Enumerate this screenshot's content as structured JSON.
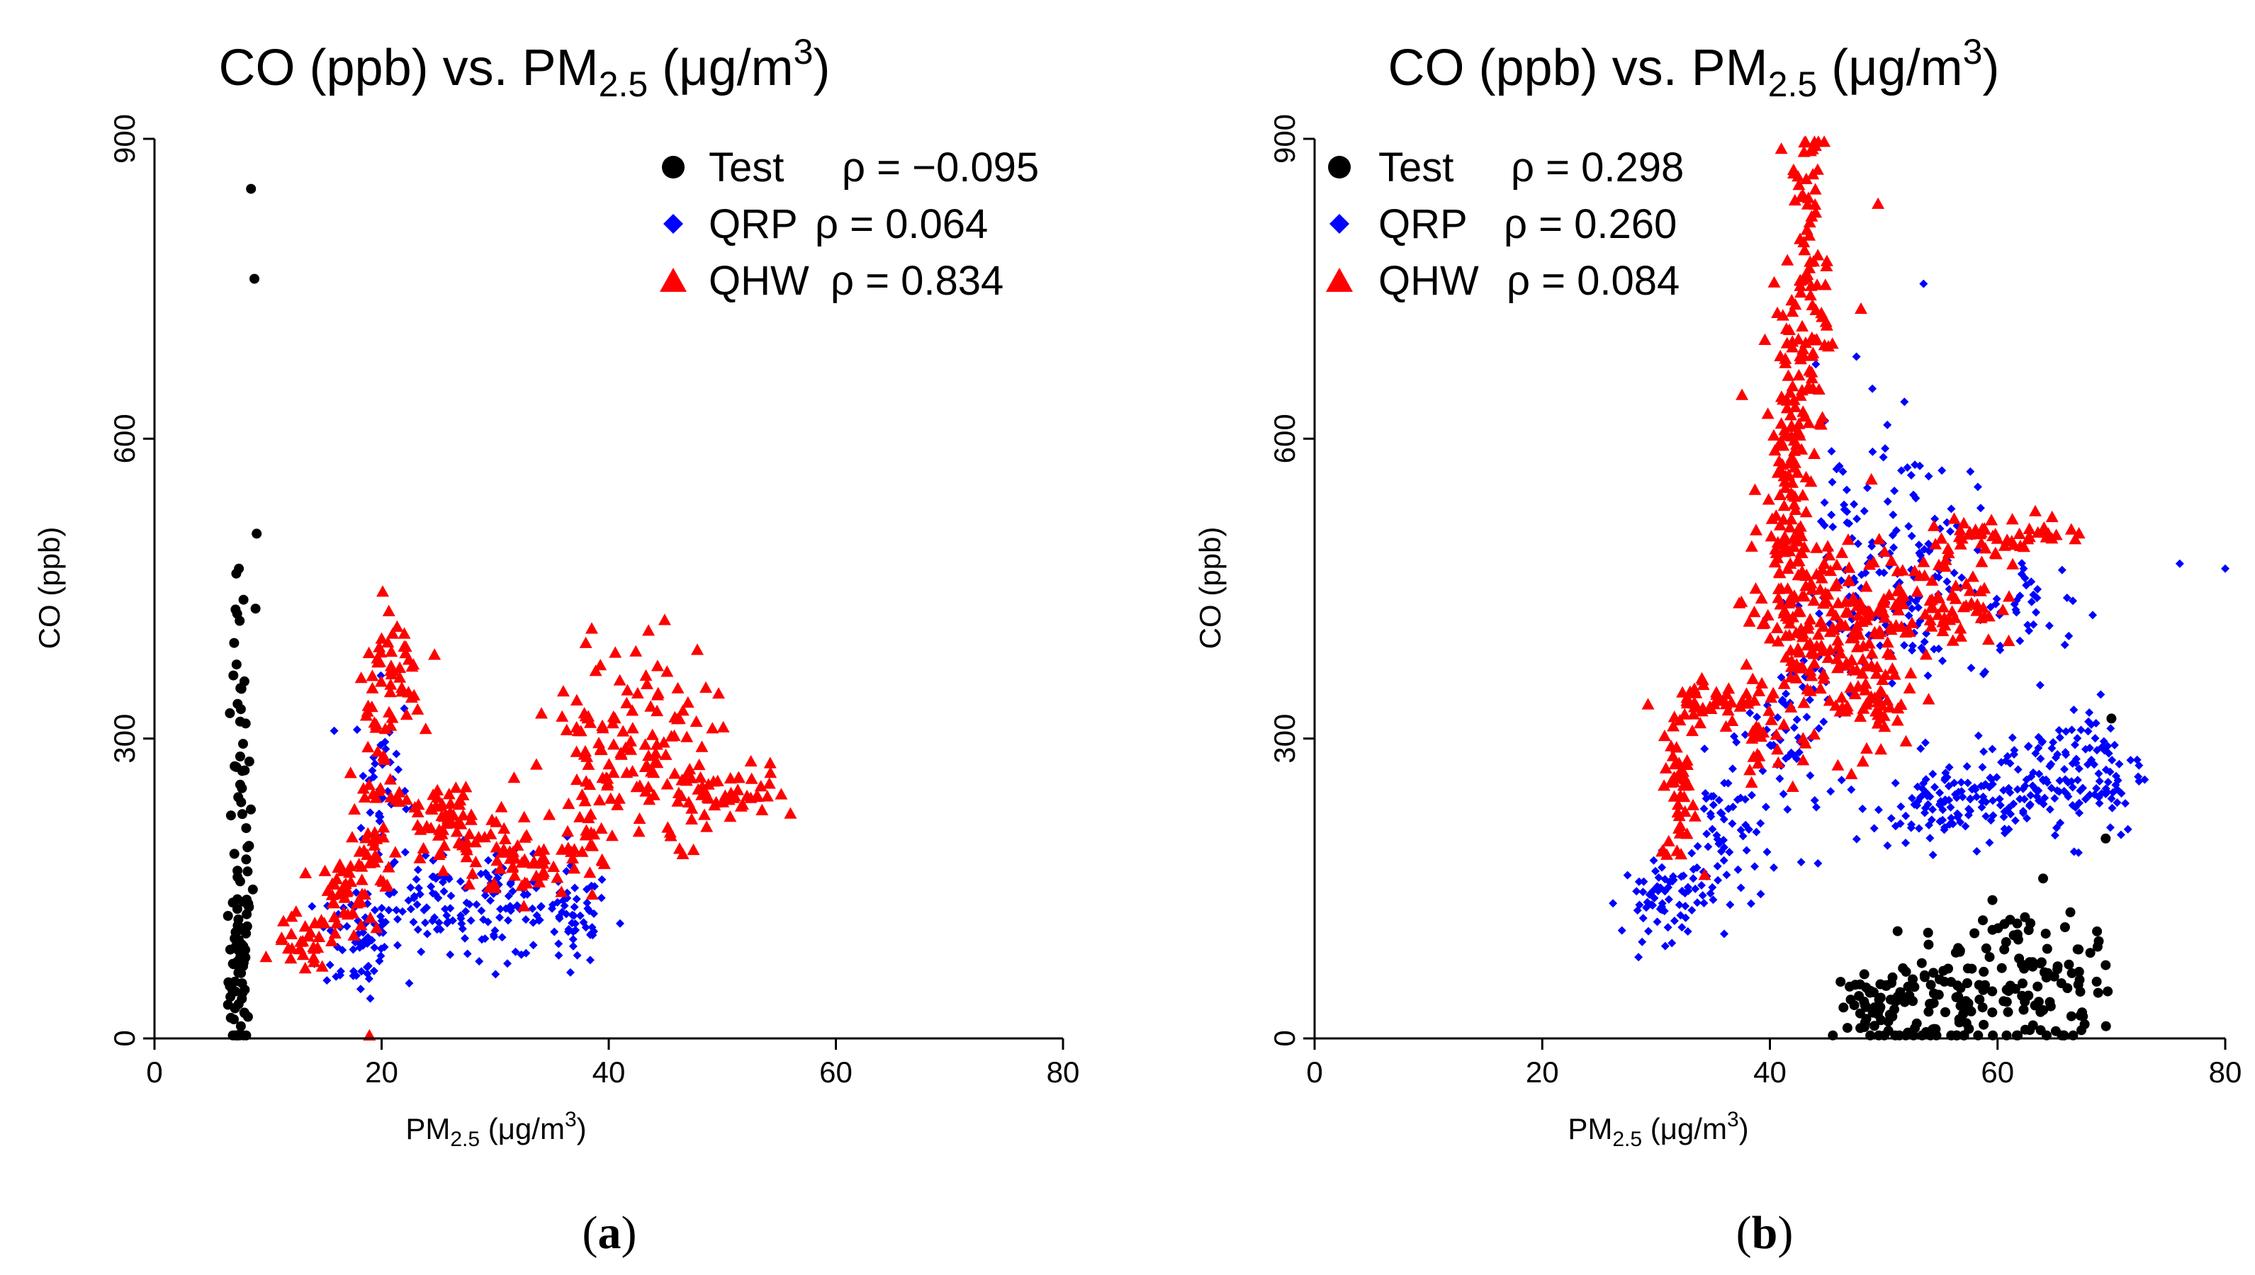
{
  "colors": {
    "Test": "#000000",
    "QRP": "#0000ff",
    "QHW": "#ff0000"
  },
  "chart_data": [
    {
      "type": "scatter",
      "panel": "a",
      "caption_open": "(",
      "caption_letter": "a",
      "caption_close": ")",
      "title_main": "CO (ppb) vs. PM",
      "title_sub": "2.5",
      "title_unit": " (μg/m",
      "title_sup": "3",
      "title_close": ")",
      "xlabel_main": "PM",
      "xlabel_sub": "2.5",
      "xlabel_unit": " (μg/m",
      "xlabel_sup": "3",
      "xlabel_close": ")",
      "ylabel": "CO (ppb)",
      "xlim": [
        0,
        80
      ],
      "ylim": [
        0,
        900
      ],
      "xticks": [
        "0",
        "20",
        "40",
        "60",
        "80"
      ],
      "yticks": [
        "0",
        "300",
        "600",
        "900"
      ],
      "legend_position": "top-right",
      "series": [
        {
          "name": "Test",
          "label": "Test",
          "rho_text": "ρ = −0.095",
          "marker": "circle",
          "clusters": [
            [
              7.5,
              60,
              0.5,
              50,
              60
            ],
            [
              7.6,
              200,
              0.5,
              90,
              40
            ],
            [
              7.4,
              400,
              0.4,
              50,
              8
            ]
          ],
          "points": [
            [
              8.5,
              850
            ],
            [
              8.8,
              760
            ],
            [
              9.0,
              505
            ],
            [
              8.9,
              430
            ],
            [
              7.2,
              465
            ]
          ]
        },
        {
          "name": "QRP",
          "label": "QRP",
          "rho_text": "ρ = 0.064",
          "marker": "diamond",
          "clusters": [
            [
              18,
              100,
              1.8,
              30,
              60
            ],
            [
              20,
              250,
              1.2,
              50,
              45
            ],
            [
              25,
              140,
              2.5,
              25,
              70
            ],
            [
              31,
              130,
              2.5,
              25,
              70
            ],
            [
              37,
              120,
              1.5,
              25,
              50
            ]
          ],
          "points": [
            [
              41,
              115
            ],
            [
              22,
              330
            ],
            [
              19,
              40
            ]
          ]
        },
        {
          "name": "QHW",
          "label": "QHW",
          "rho_text": "ρ = 0.834",
          "marker": "triangle",
          "clusters": [
            [
              13,
              95,
              1.2,
              15,
              25
            ],
            [
              17,
              140,
              1.3,
              25,
              45
            ],
            [
              19.5,
              280,
              1.0,
              70,
              55
            ],
            [
              21.5,
              360,
              1.0,
              30,
              30
            ],
            [
              26,
              210,
              2.8,
              25,
              80
            ],
            [
              33,
              175,
              2.5,
              15,
              40
            ],
            [
              38,
              260,
              1.5,
              60,
              60
            ],
            [
              43,
              290,
              3.0,
              55,
              90
            ],
            [
              50,
              245,
              3.0,
              15,
              50
            ]
          ],
          "points": [
            [
              20,
              400
            ],
            [
              22,
              405
            ],
            [
              38.5,
              410
            ],
            [
              43.5,
              408
            ],
            [
              56,
              225
            ],
            [
              12,
              80
            ]
          ]
        }
      ]
    },
    {
      "type": "scatter",
      "panel": "b",
      "caption_open": "(",
      "caption_letter": "b",
      "caption_close": ")",
      "title_main": "CO (ppb) vs. PM",
      "title_sub": "2.5",
      "title_unit": " (μg/m",
      "title_sup": "3",
      "title_close": ")",
      "xlabel_main": "PM",
      "xlabel_sub": "2.5",
      "xlabel_unit": " (μg/m",
      "xlabel_sup": "3",
      "xlabel_close": ")",
      "ylabel": "CO (ppb)",
      "xlim": [
        0,
        80
      ],
      "ylim": [
        0,
        900
      ],
      "xticks": [
        "0",
        "20",
        "40",
        "60",
        "80"
      ],
      "yticks": [
        "0",
        "300",
        "600",
        "900"
      ],
      "legend_position": "top-left",
      "series": [
        {
          "name": "Test",
          "label": "Test",
          "rho_text": "ρ = 0.298",
          "marker": "circle",
          "clusters": [
            [
              50,
              30,
              2.0,
              22,
              70
            ],
            [
              56,
              40,
              3.0,
              30,
              70
            ],
            [
              63,
              55,
              2.5,
              40,
              70
            ],
            [
              67,
              60,
              1.5,
              30,
              25
            ]
          ],
          "points": [
            [
              70,
              320
            ],
            [
              69.5,
              200
            ],
            [
              64,
              160
            ]
          ]
        },
        {
          "name": "QRP",
          "label": "QRP",
          "rho_text": "ρ = 0.260",
          "marker": "diamond",
          "clusters": [
            [
              31,
              140,
              2.0,
              20,
              70
            ],
            [
              36,
              200,
              1.6,
              40,
              60
            ],
            [
              42,
              300,
              2.0,
              50,
              60
            ],
            [
              47,
              450,
              2.0,
              90,
              80
            ],
            [
              53,
              480,
              2.5,
              60,
              90
            ],
            [
              54,
              230,
              2.5,
              20,
              80
            ],
            [
              61,
              250,
              3.0,
              25,
              90
            ],
            [
              68,
              270,
              2.5,
              35,
              100
            ],
            [
              63,
              430,
              2.5,
              30,
              40
            ]
          ],
          "points": [
            [
              76,
              475
            ],
            [
              80,
              470
            ],
            [
              53.5,
              755
            ],
            [
              27,
              108
            ],
            [
              49,
              650
            ]
          ]
        },
        {
          "name": "QHW",
          "label": "QHW",
          "rho_text": "ρ = 0.084",
          "marker": "triangle",
          "clusters": [
            [
              32,
              250,
              0.8,
              40,
              45
            ],
            [
              35,
              340,
              1.8,
              15,
              40
            ],
            [
              39,
              310,
              1.0,
              20,
              25
            ],
            [
              41.5,
              560,
              0.8,
              90,
              110
            ],
            [
              43.5,
              750,
              0.8,
              90,
              90
            ],
            [
              42.5,
              430,
              2.5,
              60,
              120
            ],
            [
              48,
              380,
              2.5,
              50,
              130
            ],
            [
              55,
              440,
              2.5,
              25,
              70
            ],
            [
              61,
              505,
              3.5,
              10,
              50
            ]
          ],
          "points": [
            [
              41,
              890
            ],
            [
              44,
              893
            ],
            [
              49.5,
              835
            ],
            [
              48,
              730
            ],
            [
              32,
              210
            ],
            [
              48.5,
              290
            ]
          ]
        }
      ]
    }
  ]
}
